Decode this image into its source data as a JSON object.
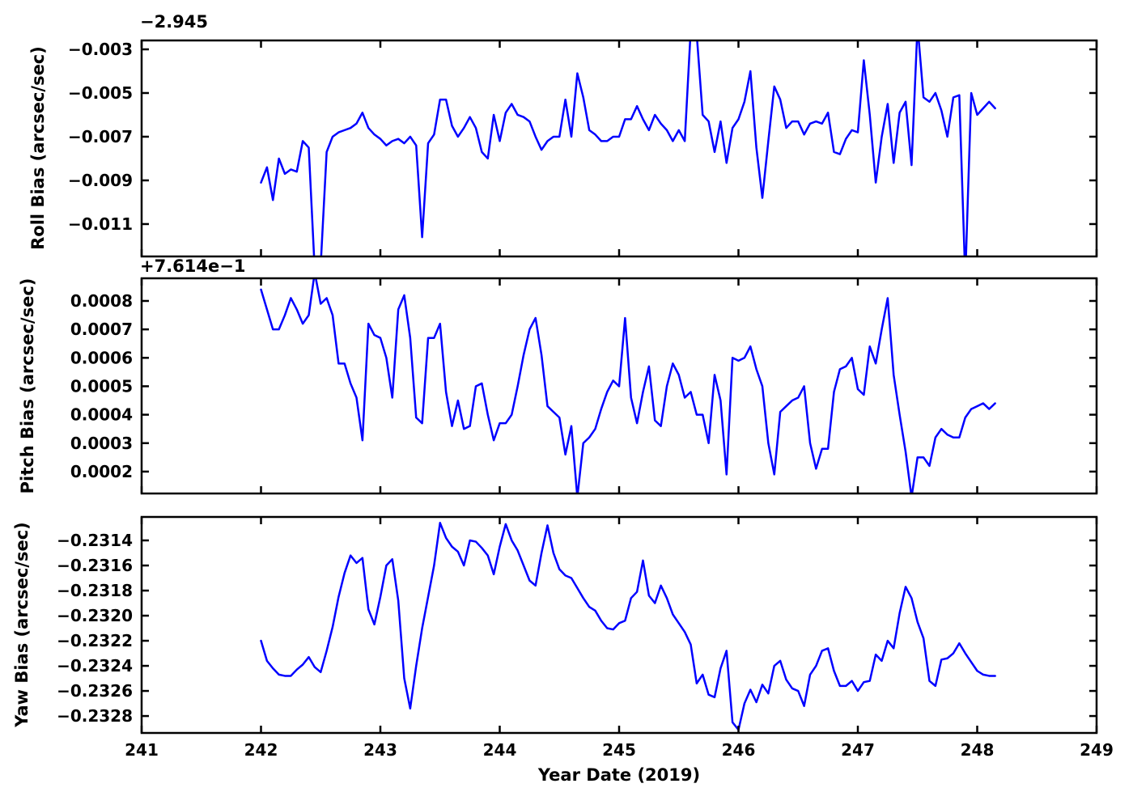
{
  "figure": {
    "background_color": "#ffffff",
    "axis_color": "#000000",
    "line_color": "#0000ff"
  },
  "chart_data": {
    "type": "line",
    "title": "",
    "xlabel": "Year Date (2019)",
    "xlim": [
      241,
      249
    ],
    "x_ticks": [
      241,
      242,
      243,
      244,
      245,
      246,
      247,
      248,
      249
    ],
    "x_tick_labels": [
      "241",
      "242",
      "243",
      "244",
      "245",
      "246",
      "247",
      "248",
      "249"
    ],
    "grid": false,
    "legend": "none",
    "x": [
      242.0,
      242.05,
      242.1,
      242.15,
      242.2,
      242.25,
      242.3,
      242.35,
      242.4,
      242.45,
      242.5,
      242.55,
      242.6,
      242.65,
      242.7,
      242.75,
      242.8,
      242.85,
      242.9,
      242.95,
      243.0,
      243.05,
      243.1,
      243.15,
      243.2,
      243.25,
      243.3,
      243.35,
      243.4,
      243.45,
      243.5,
      243.55,
      243.6,
      243.65,
      243.7,
      243.75,
      243.8,
      243.85,
      243.9,
      243.95,
      244.0,
      244.05,
      244.1,
      244.15,
      244.2,
      244.25,
      244.3,
      244.35,
      244.4,
      244.45,
      244.5,
      244.55,
      244.6,
      244.65,
      244.7,
      244.75,
      244.8,
      244.85,
      244.9,
      244.95,
      245.0,
      245.05,
      245.1,
      245.15,
      245.2,
      245.25,
      245.3,
      245.35,
      245.4,
      245.45,
      245.5,
      245.55,
      245.6,
      245.65,
      245.7,
      245.75,
      245.8,
      245.85,
      245.9,
      245.95,
      246.0,
      246.05,
      246.1,
      246.15,
      246.2,
      246.25,
      246.3,
      246.35,
      246.4,
      246.45,
      246.5,
      246.55,
      246.6,
      246.65,
      246.7,
      246.75,
      246.8,
      246.85,
      246.9,
      246.95,
      247.0,
      247.05,
      247.1,
      247.15,
      247.2,
      247.25,
      247.3,
      247.35,
      247.4,
      247.45,
      247.5,
      247.55,
      247.6,
      247.65,
      247.7,
      247.75,
      247.8,
      247.85,
      247.9,
      247.95,
      248.0,
      248.05,
      248.1,
      248.15
    ],
    "subplots": [
      {
        "name": "roll",
        "ylabel": "Roll Bias (arcsec/sec)",
        "axis_offset_text": "−2.945",
        "axis_offset_value": -2.945,
        "ylim": [
          -0.012483,
          -0.002593
        ],
        "y_ticks": [
          -0.003,
          -0.005,
          -0.007,
          -0.009,
          -0.011
        ],
        "y_tick_labels": [
          "−0.003",
          "−0.005",
          "−0.007",
          "−0.009",
          "−0.011"
        ],
        "values": [
          -0.0091,
          -0.0084,
          -0.0099,
          -0.008,
          -0.0087,
          -0.0085,
          -0.0086,
          -0.0072,
          -0.0075,
          -0.0131,
          -0.0129,
          -0.0077,
          -0.007,
          -0.0068,
          -0.0067,
          -0.0066,
          -0.0064,
          -0.0059,
          -0.0066,
          -0.0069,
          -0.0071,
          -0.0074,
          -0.0072,
          -0.0071,
          -0.0073,
          -0.007,
          -0.0074,
          -0.0116,
          -0.0073,
          -0.0069,
          -0.0053,
          -0.0053,
          -0.0065,
          -0.007,
          -0.0066,
          -0.0061,
          -0.0066,
          -0.0077,
          -0.008,
          -0.006,
          -0.0072,
          -0.0059,
          -0.0055,
          -0.006,
          -0.0061,
          -0.0063,
          -0.007,
          -0.0076,
          -0.0072,
          -0.007,
          -0.007,
          -0.0053,
          -0.007,
          -0.0041,
          -0.0052,
          -0.0067,
          -0.0069,
          -0.0072,
          -0.0072,
          -0.007,
          -0.007,
          -0.0062,
          -0.0062,
          -0.0056,
          -0.0062,
          -0.0067,
          -0.006,
          -0.0064,
          -0.0067,
          -0.0072,
          -0.0067,
          -0.0072,
          -0.0021,
          -0.0023,
          -0.006,
          -0.0063,
          -0.0077,
          -0.0063,
          -0.0082,
          -0.0066,
          -0.0062,
          -0.0054,
          -0.004,
          -0.0075,
          -0.0098,
          -0.0072,
          -0.0047,
          -0.0053,
          -0.0066,
          -0.0063,
          -0.0063,
          -0.0069,
          -0.0064,
          -0.0063,
          -0.0064,
          -0.0059,
          -0.0077,
          -0.0078,
          -0.0071,
          -0.0067,
          -0.0068,
          -0.0035,
          -0.006,
          -0.0091,
          -0.007,
          -0.0055,
          -0.0082,
          -0.0059,
          -0.0054,
          -0.0083,
          -0.0019,
          -0.0052,
          -0.0054,
          -0.005,
          -0.0058,
          -0.007,
          -0.0052,
          -0.0051,
          -0.0135,
          -0.005,
          -0.006,
          -0.0057,
          -0.0054,
          -0.0057
        ]
      },
      {
        "name": "pitch",
        "ylabel": "Pitch Bias (arcsec/sec)",
        "axis_offset_text": "+7.614e−1",
        "axis_offset_value": 0.7614,
        "ylim": [
          0.000123,
          0.0008796
        ],
        "y_ticks": [
          0.0008,
          0.0007,
          0.0006,
          0.0005,
          0.0004,
          0.0003,
          0.0002
        ],
        "y_tick_labels": [
          "0.0008",
          "0.0007",
          "0.0006",
          "0.0005",
          "0.0004",
          "0.0003",
          "0.0002"
        ],
        "values": [
          0.00084,
          0.00077,
          0.0007,
          0.0007,
          0.00075,
          0.00081,
          0.00077,
          0.00072,
          0.00075,
          0.0009,
          0.00079,
          0.00081,
          0.00075,
          0.00058,
          0.00058,
          0.00051,
          0.00046,
          0.00031,
          0.00072,
          0.00068,
          0.00067,
          0.0006,
          0.00046,
          0.00077,
          0.00082,
          0.00067,
          0.00039,
          0.00037,
          0.00067,
          0.00067,
          0.00072,
          0.00048,
          0.00036,
          0.00045,
          0.00035,
          0.00036,
          0.0005,
          0.00051,
          0.0004,
          0.00031,
          0.00037,
          0.00037,
          0.0004,
          0.0005,
          0.00061,
          0.0007,
          0.00074,
          0.00061,
          0.00043,
          0.00041,
          0.00039,
          0.00026,
          0.00036,
          0.00011,
          0.0003,
          0.00032,
          0.00035,
          0.00042,
          0.00048,
          0.00052,
          0.0005,
          0.00074,
          0.00046,
          0.00037,
          0.00048,
          0.00057,
          0.00038,
          0.00036,
          0.0005,
          0.00058,
          0.00054,
          0.00046,
          0.00048,
          0.0004,
          0.0004,
          0.0003,
          0.00054,
          0.00045,
          0.00019,
          0.0006,
          0.00059,
          0.0006,
          0.00064,
          0.00056,
          0.0005,
          0.0003,
          0.00019,
          0.00041,
          0.00043,
          0.00045,
          0.00046,
          0.0005,
          0.0003,
          0.00021,
          0.00028,
          0.00028,
          0.00048,
          0.00056,
          0.00057,
          0.0006,
          0.00049,
          0.00047,
          0.00064,
          0.00058,
          0.0007,
          0.00081,
          0.00054,
          0.0004,
          0.00027,
          0.00011,
          0.00025,
          0.00025,
          0.00022,
          0.00032,
          0.00035,
          0.00033,
          0.00032,
          0.00032,
          0.00039,
          0.00042,
          0.00043,
          0.00044,
          0.00042,
          0.00044
        ]
      },
      {
        "name": "yaw",
        "ylabel": "Yaw Bias (arcsec/sec)",
        "axis_offset_text": "",
        "axis_offset_value": 0,
        "ylim": [
          -0.232935,
          -0.231213
        ],
        "y_ticks": [
          -0.2314,
          -0.2316,
          -0.2318,
          -0.232,
          -0.2322,
          -0.2324,
          -0.2326,
          -0.2328
        ],
        "y_tick_labels": [
          "−0.2314",
          "−0.2316",
          "−0.2318",
          "−0.2320",
          "−0.2322",
          "−0.2324",
          "−0.2326",
          "−0.2328"
        ],
        "values": [
          -0.2322,
          -0.23236,
          -0.23242,
          -0.23247,
          -0.23248,
          -0.23248,
          -0.23243,
          -0.23239,
          -0.23233,
          -0.23241,
          -0.23245,
          -0.23228,
          -0.23209,
          -0.23185,
          -0.23166,
          -0.23152,
          -0.23158,
          -0.23154,
          -0.23195,
          -0.23207,
          -0.23185,
          -0.2316,
          -0.23155,
          -0.23188,
          -0.2325,
          -0.23274,
          -0.2324,
          -0.2321,
          -0.23185,
          -0.2316,
          -0.23126,
          -0.23138,
          -0.23145,
          -0.23149,
          -0.2316,
          -0.2314,
          -0.23141,
          -0.23146,
          -0.23152,
          -0.23167,
          -0.23145,
          -0.23127,
          -0.2314,
          -0.23148,
          -0.2316,
          -0.23172,
          -0.23176,
          -0.2315,
          -0.23128,
          -0.2315,
          -0.23163,
          -0.23168,
          -0.2317,
          -0.23178,
          -0.23186,
          -0.23193,
          -0.23196,
          -0.23204,
          -0.2321,
          -0.23211,
          -0.23206,
          -0.23204,
          -0.23186,
          -0.23181,
          -0.23156,
          -0.23184,
          -0.2319,
          -0.23176,
          -0.23186,
          -0.23199,
          -0.23206,
          -0.23213,
          -0.23223,
          -0.23254,
          -0.23247,
          -0.23263,
          -0.23265,
          -0.23242,
          -0.23228,
          -0.23285,
          -0.23291,
          -0.2327,
          -0.23259,
          -0.23269,
          -0.23255,
          -0.23262,
          -0.2324,
          -0.23236,
          -0.23251,
          -0.23258,
          -0.2326,
          -0.23272,
          -0.23247,
          -0.2324,
          -0.23228,
          -0.23226,
          -0.23244,
          -0.23256,
          -0.23256,
          -0.23252,
          -0.2326,
          -0.23253,
          -0.23252,
          -0.23231,
          -0.23236,
          -0.2322,
          -0.23226,
          -0.23198,
          -0.23177,
          -0.23186,
          -0.23205,
          -0.23218,
          -0.23252,
          -0.23256,
          -0.23235,
          -0.23234,
          -0.2323,
          -0.23222,
          -0.2323,
          -0.23237,
          -0.23244,
          -0.23247,
          -0.23248,
          -0.23248
        ]
      }
    ]
  }
}
